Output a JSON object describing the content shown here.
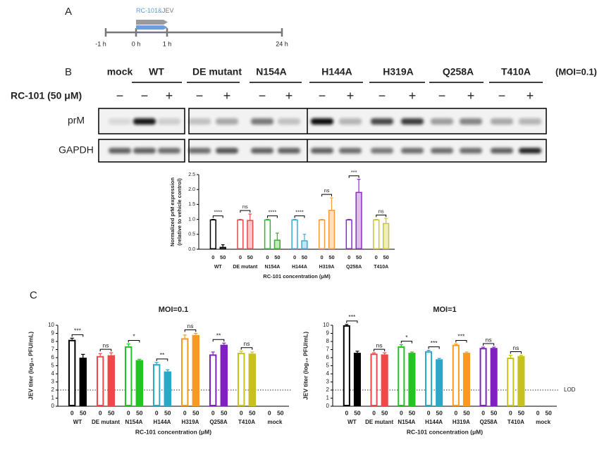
{
  "panel_a": {
    "letter": "A",
    "label_parts": [
      "RC-101&",
      "JEV"
    ],
    "timepoints": [
      "-1 h",
      "0 h",
      "1 h",
      "24 h"
    ]
  },
  "panel_b": {
    "letter": "B",
    "moi": "(MOI=0.1)",
    "treatment_label": "RC-101 (50 μM)",
    "rows": [
      "prM",
      "GAPDH"
    ],
    "groups": [
      {
        "name": "mock",
        "treatment": [
          "−"
        ]
      },
      {
        "name": "WT",
        "treatment": [
          "−",
          "+"
        ]
      },
      {
        "name": "DE mutant",
        "treatment": [
          "−",
          "+"
        ]
      },
      {
        "name": "N154A",
        "treatment": [
          "−",
          "+"
        ]
      },
      {
        "name": "H144A",
        "treatment": [
          "−",
          "+"
        ]
      },
      {
        "name": "H319A",
        "treatment": [
          "−",
          "+"
        ]
      },
      {
        "name": "Q258A",
        "treatment": [
          "−",
          "+"
        ]
      },
      {
        "name": "T410A",
        "treatment": [
          "−",
          "+"
        ]
      }
    ]
  },
  "panel_c": {
    "letter": "C"
  },
  "chart_data": [
    {
      "type": "grouped_bar",
      "y_label": [
        "Normalized prM expression",
        "(relative to vehicle control)"
      ],
      "x_label": "RC-101 concentration (μM)",
      "doses": [
        0,
        50
      ],
      "fill_opacity": 0.3,
      "ylim": [
        0,
        2.5
      ],
      "yticks": [
        {
          "value": 0,
          "label": "0.0"
        },
        0.5,
        {
          "value": 1,
          "label": "1.0"
        },
        1.5,
        {
          "value": 2,
          "label": "2.0"
        },
        2.5
      ],
      "groups": [
        {
          "name": "WT",
          "color": "#000000",
          "values": [
            1.0,
            0.08
          ],
          "errors": [
            0,
            0.07
          ],
          "significance": "****"
        },
        {
          "name": "DE mutant",
          "color": "#e84a4a",
          "values": [
            1.0,
            0.98
          ],
          "errors": [
            0,
            0.2
          ],
          "significance": "ns"
        },
        {
          "name": "N154A",
          "color": "#2db82d",
          "values": [
            1.0,
            0.32
          ],
          "errors": [
            0,
            0.22
          ],
          "significance": "****"
        },
        {
          "name": "H144A",
          "color": "#3fa9d3",
          "values": [
            1.0,
            0.3
          ],
          "errors": [
            0,
            0.2
          ],
          "significance": "****"
        },
        {
          "name": "H319A",
          "color": "#f39c3c",
          "values": [
            1.0,
            1.32
          ],
          "errors": [
            0,
            0.4
          ],
          "significance": "ns"
        },
        {
          "name": "Q258A",
          "color": "#8a2cc4",
          "values": [
            1.0,
            1.92
          ],
          "errors": [
            0,
            0.42
          ],
          "significance": "***"
        },
        {
          "name": "T410A",
          "color": "#c9c72a",
          "values": [
            1.0,
            0.88
          ],
          "errors": [
            0,
            0.15
          ],
          "significance": "ns"
        }
      ]
    },
    {
      "type": "grouped_bar",
      "title": "MOI=0.1",
      "y_label": [
        "JEV titer (log₁₀ PFU/mL)"
      ],
      "x_label": "RC-101 concentration (μM)",
      "doses": [
        0,
        50
      ],
      "fill_opacity": 1,
      "reference_line": {
        "value": 2
      },
      "ylim": [
        0,
        10
      ],
      "yticks": [
        0,
        1,
        2,
        3,
        4,
        5,
        6,
        7,
        8,
        9,
        10
      ],
      "groups": [
        {
          "name": "WT",
          "color": "#000000",
          "values": [
            8.2,
            6.0
          ],
          "errors": [
            0.2,
            0.4
          ],
          "significance": "***"
        },
        {
          "name": "DE mutant",
          "color": "#f04848",
          "values": [
            6.2,
            6.3
          ],
          "errors": [
            0.3,
            0.3
          ],
          "significance": "ns"
        },
        {
          "name": "N154A",
          "color": "#22c422",
          "values": [
            7.4,
            5.7
          ],
          "errors": [
            0.3,
            0.1
          ],
          "significance": "*"
        },
        {
          "name": "H144A",
          "color": "#2aa8c8",
          "values": [
            5.2,
            4.3
          ],
          "errors": [
            0.2,
            0.2
          ],
          "significance": "**"
        },
        {
          "name": "H319A",
          "color": "#f59a23",
          "values": [
            8.4,
            8.8
          ],
          "errors": [
            0.4,
            0.2
          ],
          "significance": "ns"
        },
        {
          "name": "Q258A",
          "color": "#8020c0",
          "values": [
            6.4,
            7.6
          ],
          "errors": [
            0.3,
            0.2
          ],
          "significance": "**"
        },
        {
          "name": "T410A",
          "color": "#c8c020",
          "values": [
            6.6,
            6.5
          ],
          "errors": [
            0.2,
            0.2
          ],
          "significance": "ns"
        },
        {
          "name": "mock",
          "color": "#000000",
          "values": [
            null,
            null
          ],
          "errors": [
            null,
            null
          ]
        }
      ]
    },
    {
      "type": "grouped_bar",
      "title": "MOI=1",
      "y_label": [
        "JEV titer (log₁₀ PFU/mL)"
      ],
      "x_label": "RC-101 concentration (μM)",
      "doses": [
        0,
        50
      ],
      "fill_opacity": 1,
      "reference_line": {
        "value": 2,
        "label": "LOD"
      },
      "ylim": [
        0,
        10
      ],
      "yticks": [
        0,
        1,
        2,
        3,
        4,
        5,
        6,
        7,
        8,
        9,
        10
      ],
      "groups": [
        {
          "name": "WT",
          "color": "#000000",
          "values": [
            10.0,
            6.6
          ],
          "errors": [
            0.1,
            0.2
          ],
          "significance": "***"
        },
        {
          "name": "DE mutant",
          "color": "#f04848",
          "values": [
            6.5,
            6.4
          ],
          "errors": [
            0.1,
            0.2
          ],
          "significance": "ns"
        },
        {
          "name": "N154A",
          "color": "#22c422",
          "values": [
            7.4,
            6.6
          ],
          "errors": [
            0.2,
            0.1
          ],
          "significance": "*"
        },
        {
          "name": "H144A",
          "color": "#2aa8c8",
          "values": [
            6.8,
            5.8
          ],
          "errors": [
            0.1,
            0.1
          ],
          "significance": "***"
        },
        {
          "name": "H319A",
          "color": "#f59a23",
          "values": [
            7.6,
            6.6
          ],
          "errors": [
            0.1,
            0.1
          ],
          "significance": "***"
        },
        {
          "name": "Q258A",
          "color": "#8020c0",
          "values": [
            7.2,
            7.2
          ],
          "errors": [
            0.1,
            0.1
          ],
          "significance": "ns"
        },
        {
          "name": "T410A",
          "color": "#c8c020",
          "values": [
            6.0,
            6.2
          ],
          "errors": [
            0.3,
            0.1
          ],
          "significance": "ns"
        },
        {
          "name": "mock",
          "color": "#000000",
          "values": [
            null,
            null
          ],
          "errors": [
            null,
            null
          ]
        }
      ]
    }
  ]
}
